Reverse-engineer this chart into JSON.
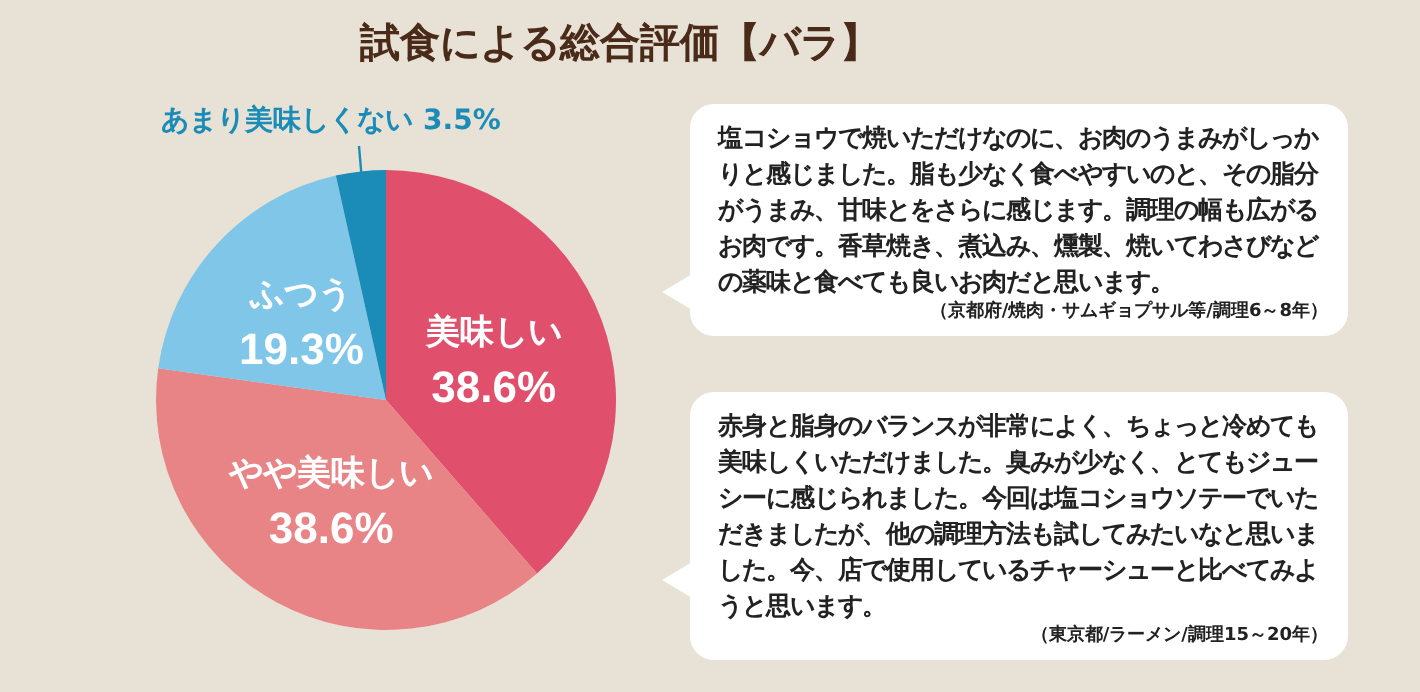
{
  "chart_data": {
    "type": "pie",
    "title": "試食による総合評価【バラ】",
    "categories": [
      "美味しい",
      "やや美味しい",
      "ふつう",
      "あまり美味しくない"
    ],
    "values": [
      38.6,
      38.6,
      19.3,
      3.5
    ],
    "value_labels": [
      "38.6%",
      "38.6%",
      "19.3%",
      "3.5%"
    ],
    "colors": [
      "#e0506c",
      "#e88485",
      "#7fc6e8",
      "#1b8bb8"
    ],
    "legend": false,
    "annotations": [
      "塩コショウで焼いただけなのに、お肉のうまみがしっかりと感じました。脂も少なく食べやすいのと、その脂分がうまみ、甘味とをさらに感じます。調理の幅も広がるお肉です。香草焼き、煮込み、燻製、焼いてわさびなどの薬味と食べても良いお肉だと思います。",
      "（京都府/焼肉・サムギョプサル等/調理6～8年）",
      "赤身と脂身のバランスが非常によく、ちょっと冷めても美味しくいただけました。臭みが少なく、とてもジューシーに感じられました。今回は塩コショウソテーでいただきましたが、他の調理方法も試してみたいなと思いました。今、店で使用しているチャーシューと比べてみようと思います。",
      "（東京都/ラーメン/調理15～20年）"
    ]
  }
}
